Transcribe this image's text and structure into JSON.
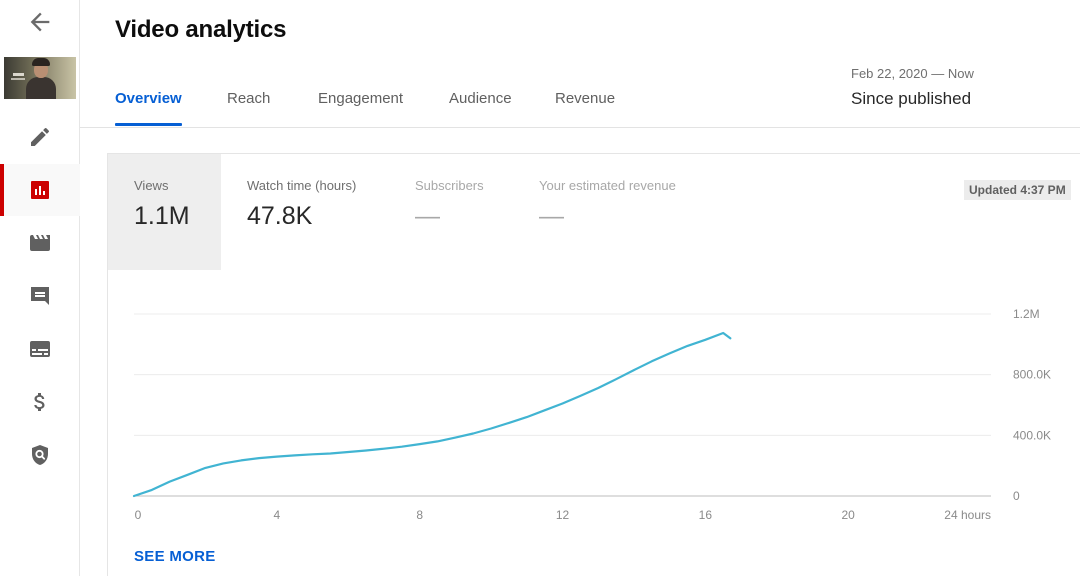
{
  "page": {
    "title": "Video analytics"
  },
  "sidebar": {
    "back_icon": "arrow-left-icon",
    "items": [
      {
        "id": "details",
        "icon": "pencil-icon",
        "active": false
      },
      {
        "id": "analytics",
        "icon": "bar-chart-icon",
        "active": true
      },
      {
        "id": "editor",
        "icon": "clapperboard-icon",
        "active": false
      },
      {
        "id": "comments",
        "icon": "comment-icon",
        "active": false
      },
      {
        "id": "subtitles",
        "icon": "subtitles-icon",
        "active": false
      },
      {
        "id": "monetization",
        "icon": "dollar-icon",
        "active": false
      },
      {
        "id": "copyright",
        "icon": "copyright-shield-icon",
        "active": false
      }
    ]
  },
  "tabs": [
    {
      "label": "Overview",
      "active": true
    },
    {
      "label": "Reach",
      "active": false
    },
    {
      "label": "Engagement",
      "active": false
    },
    {
      "label": "Audience",
      "active": false
    },
    {
      "label": "Revenue",
      "active": false
    }
  ],
  "date_range": {
    "range": "Feb 22, 2020 — Now",
    "period": "Since published"
  },
  "metrics": [
    {
      "label": "Views",
      "value": "1.1M",
      "active": true
    },
    {
      "label": "Watch time (hours)",
      "value": "47.8K",
      "active": false
    },
    {
      "label": "Subscribers",
      "value": "—",
      "active": false
    },
    {
      "label": "Your estimated revenue",
      "value": "—",
      "active": false
    }
  ],
  "updated": "Updated 4:37 PM",
  "chart_data": {
    "type": "line",
    "title": "",
    "xlabel": "",
    "ylabel": "",
    "x_ticks": [
      "0",
      "4",
      "8",
      "12",
      "16",
      "20",
      "24 hours"
    ],
    "y_ticks": [
      "0",
      "400.0K",
      "800.0K",
      "1.2M"
    ],
    "xlim": [
      0,
      24
    ],
    "ylim": [
      0,
      1200000
    ],
    "grid": true,
    "line_color": "#41b4d2",
    "series": [
      {
        "x": [
          0,
          0.5,
          1,
          1.5,
          2,
          2.5,
          3,
          3.5,
          4,
          4.5,
          5,
          5.5,
          6,
          6.5,
          7,
          7.5,
          8,
          8.5,
          9,
          9.5,
          10,
          10.5,
          11,
          11.5,
          12,
          12.5,
          13,
          13.5,
          14,
          14.5,
          15,
          15.5,
          16,
          16.5,
          16.7
        ],
        "y": [
          0,
          40000,
          95000,
          140000,
          185000,
          215000,
          235000,
          250000,
          260000,
          268000,
          275000,
          280000,
          290000,
          300000,
          312000,
          325000,
          342000,
          360000,
          385000,
          412000,
          445000,
          482000,
          520000,
          565000,
          610000,
          660000,
          712000,
          770000,
          830000,
          888000,
          940000,
          990000,
          1030000,
          1075000,
          1040000
        ]
      }
    ]
  },
  "see_more": "SEE MORE"
}
